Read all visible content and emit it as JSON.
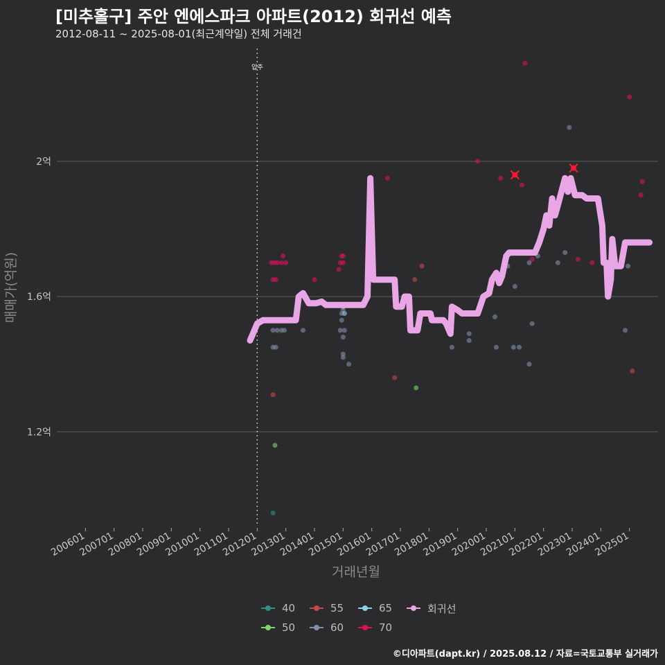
{
  "title": "[미추홀구] 주안 엔에스파크 아파트(2012) 회귀선 예측",
  "subtitle": "2012-08-11 ~ 2025-08-01(최근계약일) 전체 거래건",
  "caption": "©디아파트(dapt.kr) / 2025.08.12 / 자료=국토교통부 실거래가",
  "chart_data": {
    "type": "scatter",
    "title": "[미추홀구] 주안 엔에스파크 아파트(2012) 회귀선 예측",
    "xlabel": "거래년월",
    "ylabel": "매매가(억원)",
    "xlim": [
      2005.0,
      2026.0
    ],
    "ylim": [
      0.92,
      2.35
    ],
    "x_ticks": [
      2006,
      2007,
      2008,
      2009,
      2010,
      2011,
      2012,
      2013,
      2014,
      2015,
      2016,
      2017,
      2018,
      2019,
      2020,
      2021,
      2022,
      2023,
      2024,
      2025
    ],
    "x_tick_labels": [
      "200601",
      "200701",
      "200801",
      "200901",
      "201001",
      "201101",
      "201201",
      "201301",
      "201401",
      "201501",
      "201601",
      "201701",
      "201801",
      "201901",
      "202001",
      "202101",
      "202201",
      "202301",
      "202401",
      "202501"
    ],
    "y_ticks": [
      1.2,
      1.6,
      2.0
    ],
    "y_tick_labels": [
      "1.2억",
      "1.6억",
      "2억"
    ],
    "annotation": {
      "x": 2012.0,
      "label": "입주"
    },
    "legend": [
      {
        "name": "40",
        "color": "#2f8f86"
      },
      {
        "name": "55",
        "color": "#c44a4a"
      },
      {
        "name": "65",
        "color": "#8fcfe3"
      },
      {
        "name": "회귀선",
        "color": "#e8a6e6"
      },
      {
        "name": "50",
        "color": "#7fd46a"
      },
      {
        "name": "60",
        "color": "#8090a8"
      },
      {
        "name": "70",
        "color": "#e0105a"
      }
    ],
    "series": [
      {
        "name": "40",
        "color": "#2f8f86",
        "points": [
          [
            2012.55,
            0.96
          ]
        ]
      },
      {
        "name": "50",
        "color": "#7fd46a",
        "points": [
          [
            2012.62,
            1.16
          ],
          [
            2017.55,
            1.33
          ]
        ]
      },
      {
        "name": "55",
        "color": "#c44a4a",
        "points": [
          [
            2012.55,
            1.31
          ],
          [
            2016.8,
            1.36
          ],
          [
            2017.5,
            1.65
          ],
          [
            2017.75,
            1.69
          ],
          [
            2025.1,
            1.38
          ]
        ]
      },
      {
        "name": "60",
        "color": "#8090a8",
        "points": [
          [
            2012.55,
            1.5
          ],
          [
            2012.55,
            1.45
          ],
          [
            2012.65,
            1.45
          ],
          [
            2012.7,
            1.5
          ],
          [
            2012.85,
            1.5
          ],
          [
            2012.95,
            1.5
          ],
          [
            2013.6,
            1.5
          ],
          [
            2014.9,
            1.5
          ],
          [
            2014.95,
            1.53
          ],
          [
            2015.0,
            1.56
          ],
          [
            2014.95,
            1.55
          ],
          [
            2015.05,
            1.5
          ],
          [
            2015.0,
            1.48
          ],
          [
            2015.0,
            1.43
          ],
          [
            2015.0,
            1.42
          ],
          [
            2015.2,
            1.4
          ],
          [
            2018.8,
            1.45
          ],
          [
            2019.4,
            1.49
          ],
          [
            2019.4,
            1.47
          ],
          [
            2020.3,
            1.54
          ],
          [
            2020.35,
            1.45
          ],
          [
            2020.75,
            1.69
          ],
          [
            2020.95,
            1.45
          ],
          [
            2021.0,
            1.63
          ],
          [
            2021.15,
            1.45
          ],
          [
            2021.5,
            1.4
          ],
          [
            2021.5,
            1.7
          ],
          [
            2021.6,
            1.52
          ],
          [
            2021.8,
            1.72
          ],
          [
            2022.5,
            1.7
          ],
          [
            2022.75,
            1.73
          ],
          [
            2022.9,
            2.1
          ],
          [
            2024.85,
            1.5
          ],
          [
            2024.95,
            1.69
          ]
        ]
      },
      {
        "name": "65",
        "color": "#8fcfe3",
        "points": [
          [
            2015.0,
            1.57
          ],
          [
            2015.05,
            1.55
          ]
        ]
      },
      {
        "name": "70",
        "color": "#e0105a",
        "points": [
          [
            2012.5,
            1.7
          ],
          [
            2012.55,
            1.65
          ],
          [
            2012.6,
            1.7
          ],
          [
            2012.65,
            1.65
          ],
          [
            2012.7,
            1.7
          ],
          [
            2012.85,
            1.7
          ],
          [
            2012.9,
            1.72
          ],
          [
            2013.0,
            1.7
          ],
          [
            2014.0,
            1.65
          ],
          [
            2014.85,
            1.68
          ],
          [
            2014.9,
            1.7
          ],
          [
            2014.95,
            1.72
          ],
          [
            2015.0,
            1.72
          ],
          [
            2015.0,
            1.7
          ],
          [
            2016.55,
            1.95
          ],
          [
            2019.7,
            2.0
          ],
          [
            2020.5,
            1.95
          ],
          [
            2021.0,
            1.96
          ],
          [
            2021.25,
            1.93
          ],
          [
            2021.35,
            2.29
          ],
          [
            2021.6,
            1.71
          ],
          [
            2023.05,
            1.98
          ],
          [
            2023.2,
            1.71
          ],
          [
            2023.7,
            1.7
          ],
          [
            2025.0,
            2.19
          ],
          [
            2025.4,
            1.9
          ],
          [
            2025.45,
            1.94
          ]
        ]
      },
      {
        "name": "회귀선",
        "color": "#e8a6e6",
        "type": "line",
        "points": [
          [
            2011.75,
            1.47
          ],
          [
            2011.9,
            1.5
          ],
          [
            2012.0,
            1.52
          ],
          [
            2012.2,
            1.53
          ],
          [
            2013.0,
            1.53
          ],
          [
            2013.35,
            1.53
          ],
          [
            2013.45,
            1.6
          ],
          [
            2013.6,
            1.61
          ],
          [
            2013.8,
            1.58
          ],
          [
            2014.05,
            1.58
          ],
          [
            2014.25,
            1.585
          ],
          [
            2014.4,
            1.575
          ],
          [
            2015.7,
            1.575
          ],
          [
            2015.85,
            1.6
          ],
          [
            2015.95,
            1.95
          ],
          [
            2016.05,
            1.65
          ],
          [
            2016.8,
            1.65
          ],
          [
            2016.85,
            1.57
          ],
          [
            2017.05,
            1.57
          ],
          [
            2017.15,
            1.6
          ],
          [
            2017.3,
            1.6
          ],
          [
            2017.35,
            1.5
          ],
          [
            2017.6,
            1.5
          ],
          [
            2017.7,
            1.55
          ],
          [
            2018.05,
            1.55
          ],
          [
            2018.1,
            1.53
          ],
          [
            2018.5,
            1.53
          ],
          [
            2018.6,
            1.52
          ],
          [
            2018.75,
            1.49
          ],
          [
            2018.8,
            1.57
          ],
          [
            2019.0,
            1.56
          ],
          [
            2019.15,
            1.55
          ],
          [
            2019.7,
            1.55
          ],
          [
            2019.9,
            1.6
          ],
          [
            2020.1,
            1.61
          ],
          [
            2020.2,
            1.65
          ],
          [
            2020.35,
            1.67
          ],
          [
            2020.45,
            1.64
          ],
          [
            2020.55,
            1.66
          ],
          [
            2020.7,
            1.72
          ],
          [
            2020.8,
            1.73
          ],
          [
            2021.7,
            1.73
          ],
          [
            2021.85,
            1.76
          ],
          [
            2022.0,
            1.8
          ],
          [
            2022.1,
            1.84
          ],
          [
            2022.2,
            1.81
          ],
          [
            2022.3,
            1.89
          ],
          [
            2022.4,
            1.84
          ],
          [
            2022.5,
            1.87
          ],
          [
            2022.75,
            1.95
          ],
          [
            2022.85,
            1.91
          ],
          [
            2022.95,
            1.95
          ],
          [
            2023.1,
            1.9
          ],
          [
            2023.35,
            1.9
          ],
          [
            2023.5,
            1.89
          ],
          [
            2023.9,
            1.89
          ],
          [
            2024.05,
            1.81
          ],
          [
            2024.1,
            1.7
          ],
          [
            2024.2,
            1.7
          ],
          [
            2024.25,
            1.6
          ],
          [
            2024.35,
            1.65
          ],
          [
            2024.4,
            1.77
          ],
          [
            2024.5,
            1.69
          ],
          [
            2024.7,
            1.69
          ],
          [
            2024.85,
            1.76
          ],
          [
            2025.7,
            1.76
          ]
        ]
      }
    ],
    "highlights": [
      [
        2021.0,
        1.96
      ],
      [
        2023.05,
        1.98
      ]
    ]
  }
}
